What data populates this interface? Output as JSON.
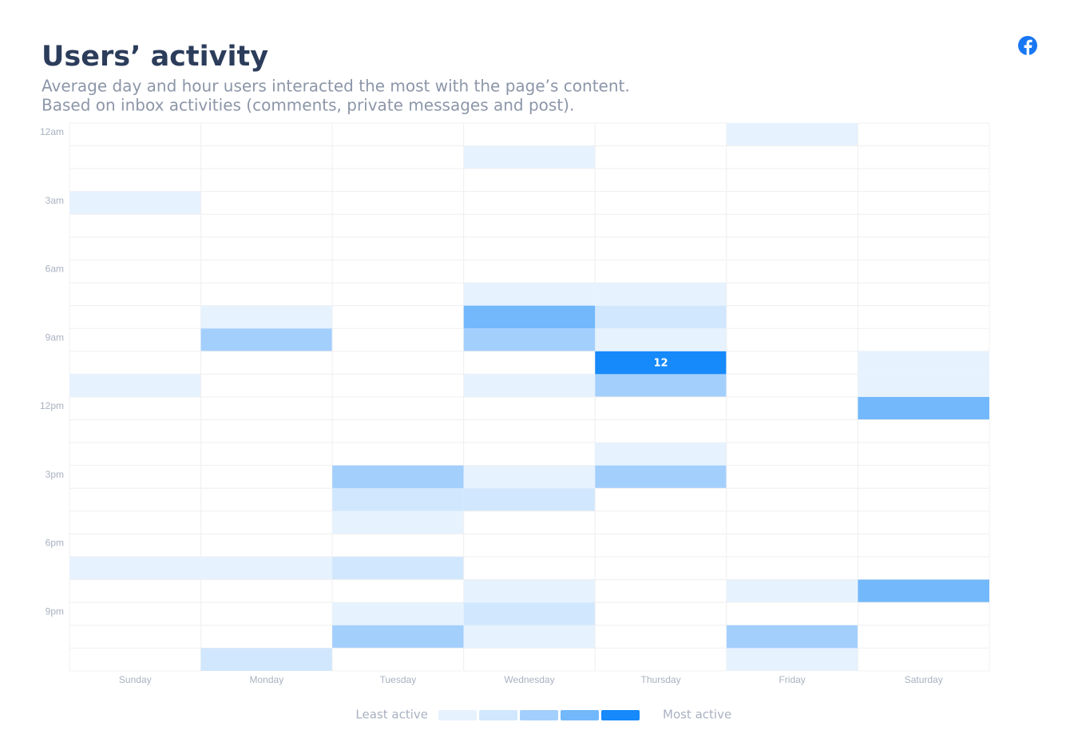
{
  "chart_data": {
    "type": "heatmap",
    "title": "Users’ activity",
    "subtitle": [
      "Average day and hour users interacted the most with the page’s content.",
      "Based on inbox activities (comments, private messages and post)."
    ],
    "x_categories": [
      "Sunday",
      "Monday",
      "Tuesday",
      "Wednesday",
      "Thursday",
      "Friday",
      "Saturday"
    ],
    "y_categories": [
      "12am",
      null,
      null,
      "3am",
      null,
      null,
      "6am",
      null,
      null,
      "9am",
      null,
      null,
      "12pm",
      null,
      null,
      "3pm",
      null,
      null,
      "6pm",
      null,
      null,
      "9pm",
      null,
      null
    ],
    "values": [
      [
        0,
        0,
        0,
        0,
        0,
        2,
        0
      ],
      [
        0,
        0,
        0,
        2,
        0,
        0,
        0
      ],
      [
        0,
        0,
        0,
        0,
        0,
        0,
        0
      ],
      [
        2,
        0,
        0,
        0,
        0,
        0,
        0
      ],
      [
        0,
        0,
        0,
        0,
        0,
        0,
        0
      ],
      [
        0,
        0,
        0,
        0,
        0,
        0,
        0
      ],
      [
        0,
        0,
        0,
        0,
        0,
        0,
        0
      ],
      [
        0,
        0,
        0,
        2,
        2,
        0,
        0
      ],
      [
        0,
        2,
        0,
        8,
        4,
        0,
        0
      ],
      [
        0,
        6,
        0,
        6,
        2,
        0,
        0
      ],
      [
        0,
        0,
        0,
        0,
        12,
        0,
        2
      ],
      [
        2,
        0,
        0,
        2,
        6,
        0,
        2
      ],
      [
        0,
        0,
        0,
        0,
        0,
        0,
        8
      ],
      [
        0,
        0,
        0,
        0,
        0,
        0,
        0
      ],
      [
        0,
        0,
        0,
        0,
        2,
        0,
        0
      ],
      [
        0,
        0,
        6,
        2,
        6,
        0,
        0
      ],
      [
        0,
        0,
        4,
        4,
        0,
        0,
        0
      ],
      [
        0,
        0,
        2,
        0,
        0,
        0,
        0
      ],
      [
        0,
        0,
        0,
        0,
        0,
        0,
        0
      ],
      [
        2,
        2,
        4,
        0,
        0,
        0,
        0
      ],
      [
        0,
        0,
        0,
        2,
        0,
        2,
        8
      ],
      [
        0,
        0,
        2,
        4,
        0,
        0,
        0
      ],
      [
        0,
        0,
        6,
        2,
        0,
        6,
        0
      ],
      [
        0,
        4,
        0,
        0,
        0,
        2,
        0
      ]
    ],
    "colors": [
      "#e6f2fe",
      "#d1e7fd",
      "#a3cffd",
      "#72b8fb",
      "#1689fb"
    ],
    "show_max_label": true,
    "legend": {
      "low": "Least active",
      "high": "Most active"
    }
  }
}
